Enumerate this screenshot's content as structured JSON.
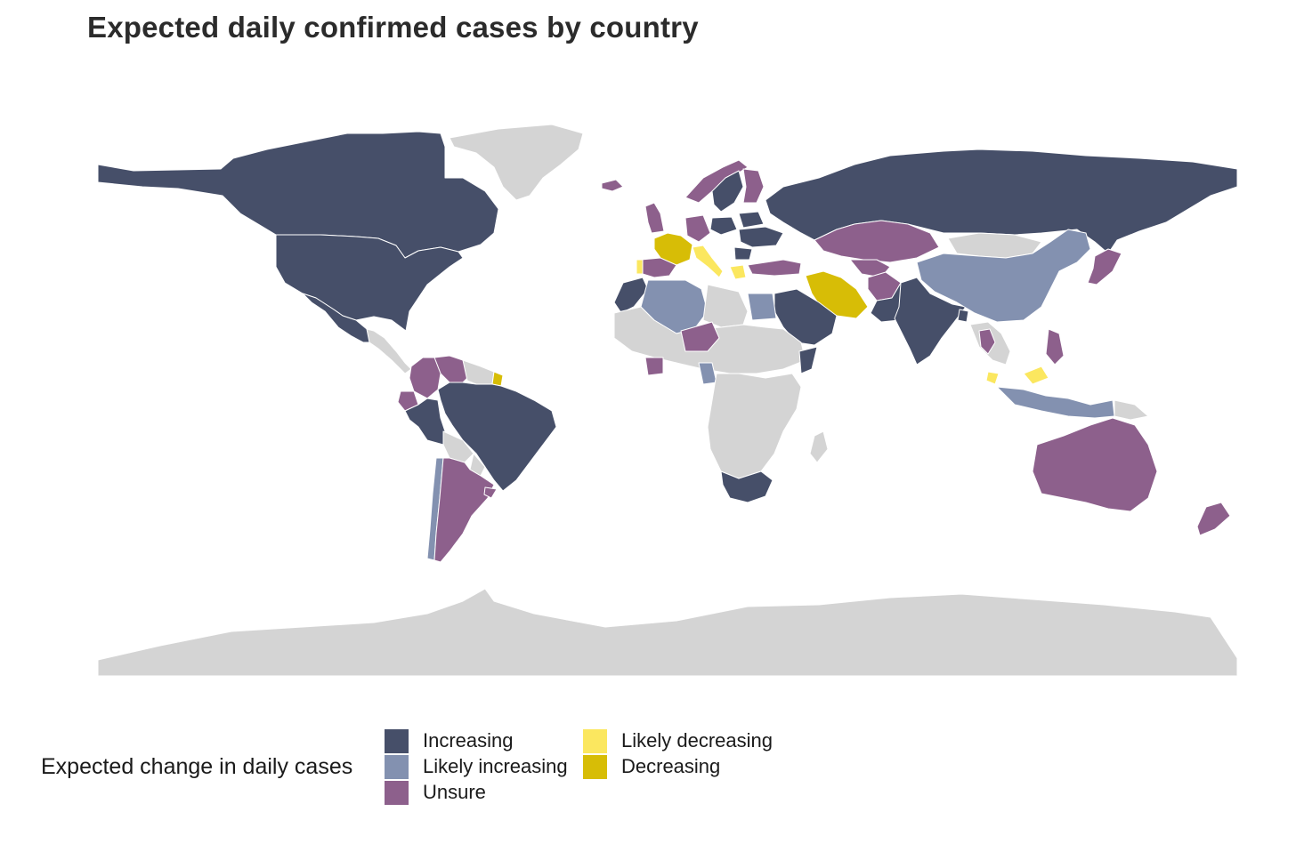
{
  "title": "Expected daily confirmed cases by country",
  "colors": {
    "increasing": "#464f69",
    "likely_increasing": "#8391b0",
    "unsure": "#8d608c",
    "likely_decreasing": "#fbe75f",
    "decreasing": "#d7bd06",
    "no_data": "#d4d4d4",
    "border": "#ffffff"
  },
  "legend": {
    "title": "Expected change in daily cases",
    "items": [
      {
        "label": "Increasing",
        "category": "increasing"
      },
      {
        "label": "Likely increasing",
        "category": "likely_increasing"
      },
      {
        "label": "Unsure",
        "category": "unsure"
      },
      {
        "label": "Likely decreasing",
        "category": "likely_decreasing"
      },
      {
        "label": "Decreasing",
        "category": "decreasing"
      }
    ]
  },
  "countries": {
    "increasing": [
      "Canada",
      "United States",
      "Mexico",
      "Brazil",
      "Peru",
      "Bolivia",
      "Russia",
      "India",
      "Pakistan",
      "Saudi Arabia",
      "Sweden",
      "Poland",
      "Ukraine",
      "Belarus",
      "Romania",
      "Morocco",
      "South Africa",
      "Somalia",
      "Bangladesh"
    ],
    "likely_increasing": [
      "China",
      "Algeria",
      "Egypt",
      "Chile",
      "Cameroon",
      "Indonesia"
    ],
    "unsure": [
      "Kazakhstan",
      "Uzbekistan",
      "Turkey",
      "Afghanistan",
      "Australia",
      "New Zealand",
      "Argentina",
      "Colombia",
      "Ecuador",
      "Venezuela",
      "Niger",
      "Ivory Coast",
      "Japan",
      "Philippines",
      "Thailand",
      "United Kingdom",
      "Norway",
      "Iceland",
      "Finland",
      "Spain"
    ],
    "likely_decreasing": [
      "Portugal",
      "Italy",
      "Greece",
      "Malaysia"
    ],
    "decreasing": [
      "France",
      "Iran",
      "French Guiana"
    ]
  }
}
